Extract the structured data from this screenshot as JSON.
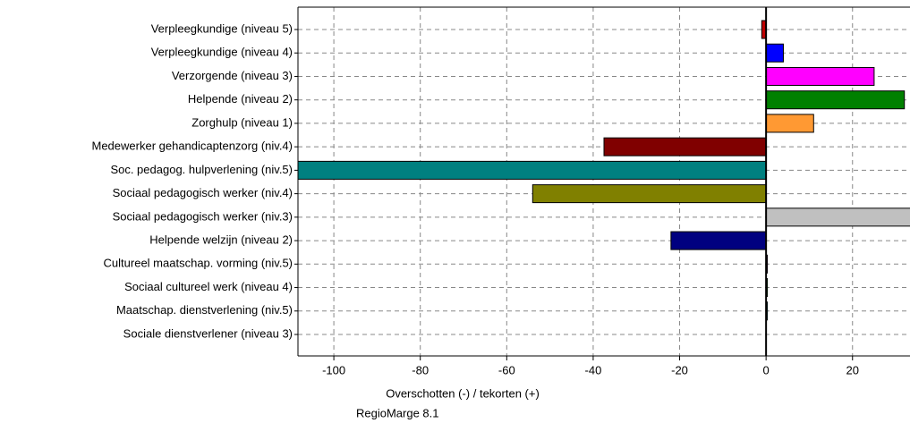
{
  "chart_data": {
    "type": "hbar",
    "categories": [
      "Verpleegkundige (niveau 5)",
      "Verpleegkundige (niveau 4)",
      "Verzorgende (niveau 3)",
      "Helpende (niveau 2)",
      "Zorghulp (niveau 1)",
      "Medewerker gehandicaptenzorg (niv.4)",
      "Soc. pedagog. hulpverlening (niv.5)",
      "Sociaal pedagogisch werker (niv.4)",
      "Sociaal pedagogisch werker (niv.3)",
      "Helpende welzijn (niveau 2)",
      "Cultureel maatschap. vorming (niv.5)",
      "Sociaal cultureel werk (niveau 4)",
      "Maatschap. dienstverlening (niv.5)",
      "Sociale dienstverlener (niveau 3)"
    ],
    "values": [
      -1,
      4,
      25,
      32,
      11,
      -37.5,
      -110,
      -54,
      35,
      -22,
      0.3,
      0.3,
      0.3,
      0
    ],
    "colors": [
      "#c00000",
      "#0000ff",
      "#ff00ff",
      "#008000",
      "#ff9933",
      "#800000",
      "#008080",
      "#808000",
      "#c0c0c0",
      "#000080",
      "#800080",
      "#00ff00",
      "#00ffff",
      "#000000"
    ],
    "xlim": [
      -108.3,
      33.3
    ],
    "xticks": [
      -100,
      -80,
      -60,
      -40,
      -20,
      0,
      20
    ],
    "xlabel": "Overschotten (-) / tekorten (+)",
    "footer": "RegioMarge 8.1",
    "grid": true
  }
}
